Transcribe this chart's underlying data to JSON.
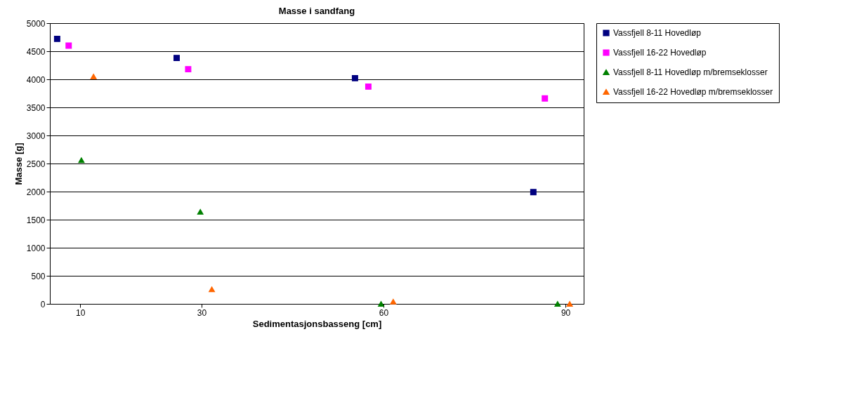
{
  "chart_data": {
    "type": "scatter",
    "title": "Masse i sandfang",
    "xlabel": "Sedimentasjonsbasseng [cm]",
    "ylabel": "Masse [g]",
    "xlim": [
      5,
      93
    ],
    "xticks": [
      10,
      30,
      60,
      90
    ],
    "ylim": [
      0,
      5000
    ],
    "yticks": [
      0,
      500,
      1000,
      1500,
      2000,
      2500,
      3000,
      3500,
      4000,
      4500,
      5000
    ],
    "grid": "y",
    "legend": "right",
    "series": [
      {
        "name": "Vassfjell 8-11 Hovedløp",
        "color": "#000080",
        "marker": "square",
        "x": [
          6.2,
          25.9,
          55.3,
          84.7
        ],
        "values": [
          4720,
          4380,
          4020,
          1990
        ]
      },
      {
        "name": "Vassfjell 16-22 Hovedløp",
        "color": "#ff00ff",
        "marker": "square",
        "x": [
          8.1,
          27.8,
          57.5,
          86.6
        ],
        "values": [
          4600,
          4180,
          3870,
          3660
        ]
      },
      {
        "name": "Vassfjell 8-11 Hovedløp m/bremseklosser",
        "color": "#008000",
        "marker": "triangle",
        "x": [
          10.2,
          29.8,
          59.6,
          88.7
        ],
        "values": [
          2560,
          1640,
          0,
          0
        ]
      },
      {
        "name": "Vassfjell 16-22 Hovedløp m/bremseklosser",
        "color": "#ff6600",
        "marker": "triangle",
        "x": [
          12.2,
          31.7,
          61.6,
          90.7
        ],
        "values": [
          4050,
          260,
          40,
          0
        ]
      }
    ]
  }
}
